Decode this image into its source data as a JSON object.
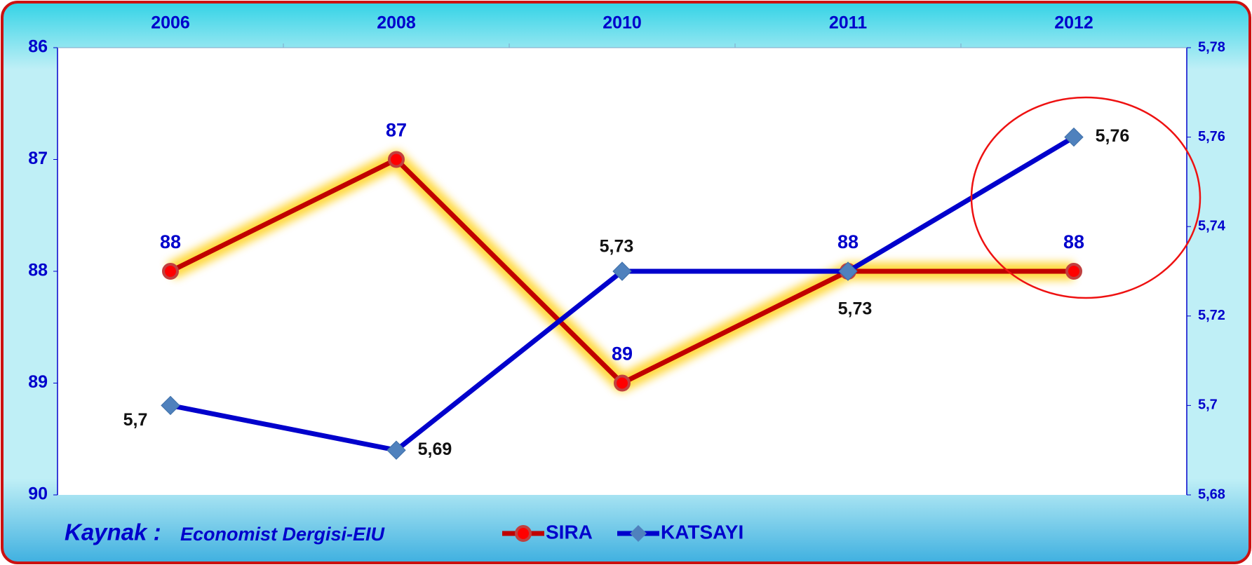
{
  "chart_data": {
    "type": "line",
    "categories": [
      "2006",
      "2008",
      "2010",
      "2011",
      "2012"
    ],
    "series": [
      {
        "name": "SIRA",
        "color": "#c00000",
        "marker_color": "#ff0000",
        "values": [
          88,
          87,
          89,
          88,
          88
        ]
      },
      {
        "name": "KATSAYI",
        "color": "#0000cc",
        "marker_color": "#4f81bd",
        "axis": "y2",
        "values": [
          5.7,
          5.69,
          5.73,
          5.73,
          5.76
        ],
        "value_labels": [
          "5,7",
          "5,69",
          "5,73",
          "5,73",
          "5,76"
        ]
      }
    ],
    "ylim": [
      86,
      90
    ],
    "y_inverted": true,
    "yticks": [
      86,
      87,
      88,
      89,
      90
    ],
    "y2lim": [
      5.68,
      5.78
    ],
    "y2ticks": [
      {
        "value": 5.68,
        "label": "5,68"
      },
      {
        "value": 5.7,
        "label": "5,7"
      },
      {
        "value": 5.72,
        "label": "5,72"
      },
      {
        "value": 5.74,
        "label": "5,74"
      },
      {
        "value": 5.76,
        "label": "5,76"
      },
      {
        "value": 5.78,
        "label": "5,78"
      }
    ],
    "source_label": "Kaynak :",
    "source": "Economist Dergisi-EIU",
    "legend": "bottom",
    "grid": false
  }
}
